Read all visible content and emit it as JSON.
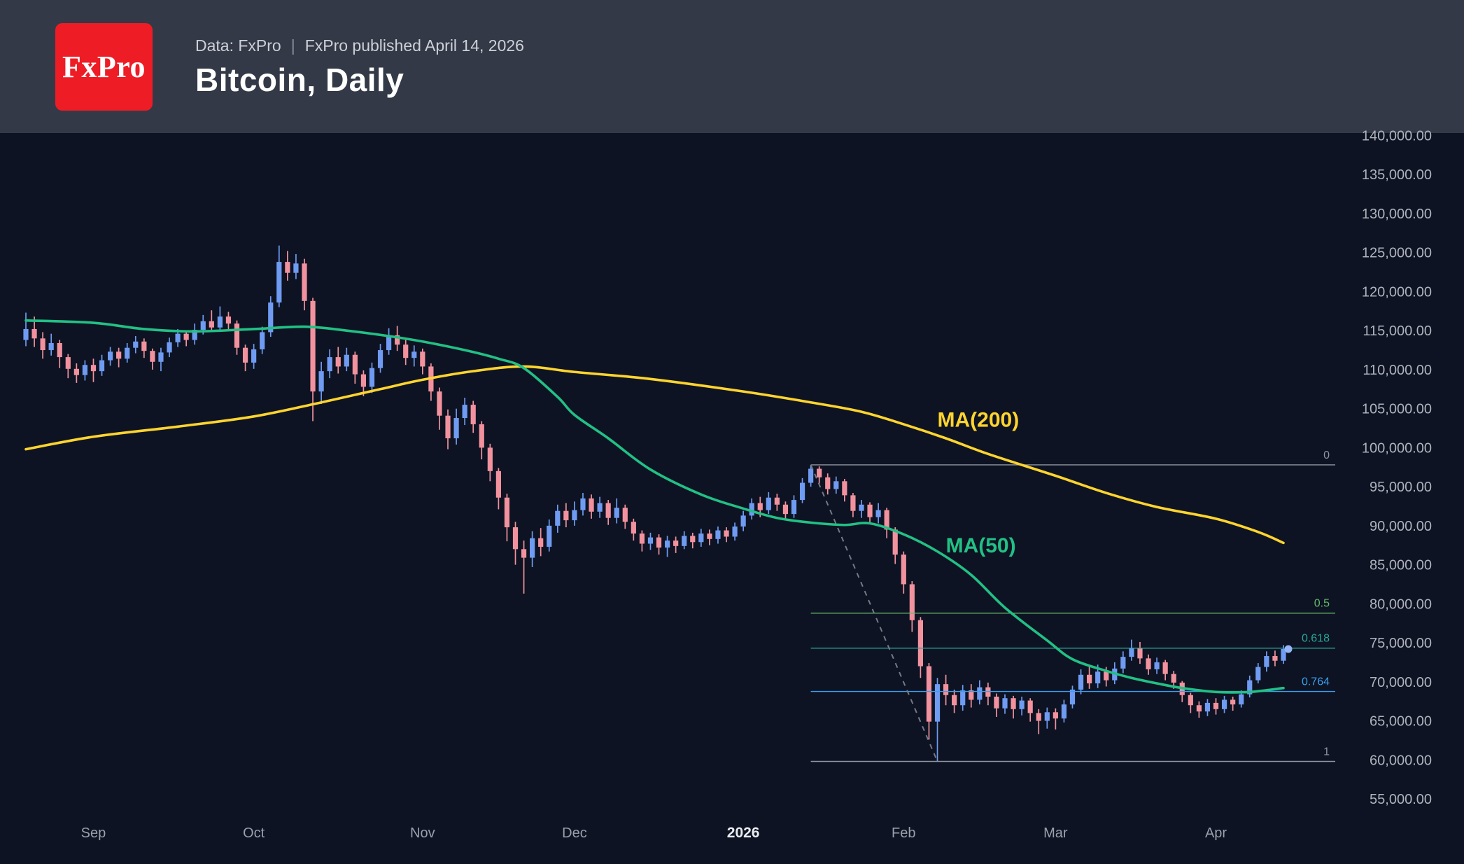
{
  "header": {
    "logo_text": "FxPro",
    "source_line": "Data: FxPro",
    "separator": "|",
    "published_line": "FxPro published April 14, 2026",
    "title": "Bitcoin, Daily"
  },
  "chart_data": {
    "type": "candlestick",
    "title": "Bitcoin, Daily",
    "symbol": "Bitcoin",
    "timeframe": "Daily",
    "grid": false,
    "colors": {
      "up": "#6f9bf2",
      "down": "#f2929e",
      "background": "#0d1322"
    },
    "y_axis": {
      "max": 140000,
      "min": 55000,
      "step": 5000,
      "ticks": [
        {
          "value": 140000,
          "label": "140,000.00"
        },
        {
          "value": 135000,
          "label": "135,000.00"
        },
        {
          "value": 130000,
          "label": "130,000.00"
        },
        {
          "value": 125000,
          "label": "125,000.00"
        },
        {
          "value": 120000,
          "label": "120,000.00"
        },
        {
          "value": 115000,
          "label": "115,000.00"
        },
        {
          "value": 110000,
          "label": "110,000.00"
        },
        {
          "value": 105000,
          "label": "105,000.00"
        },
        {
          "value": 100000,
          "label": "100,000.00"
        },
        {
          "value": 95000,
          "label": "95,000.00"
        },
        {
          "value": 90000,
          "label": "90,000.00"
        },
        {
          "value": 85000,
          "label": "85,000.00"
        },
        {
          "value": 80000,
          "label": "80,000.00"
        },
        {
          "value": 75000,
          "label": "75,000.00"
        },
        {
          "value": 70000,
          "label": "70,000.00"
        },
        {
          "value": 65000,
          "label": "65,000.00"
        },
        {
          "value": 60000,
          "label": "60,000.00"
        },
        {
          "value": 55000,
          "label": "55,000.00"
        }
      ]
    },
    "x_axis": {
      "labels": [
        {
          "text": "Sep",
          "index": 8,
          "bold": false
        },
        {
          "text": "Oct",
          "index": 27,
          "bold": false
        },
        {
          "text": "Nov",
          "index": 47,
          "bold": false
        },
        {
          "text": "Dec",
          "index": 65,
          "bold": false
        },
        {
          "text": "2026",
          "index": 85,
          "bold": true
        },
        {
          "text": "Feb",
          "index": 104,
          "bold": false
        },
        {
          "text": "Mar",
          "index": 122,
          "bold": false
        },
        {
          "text": "Apr",
          "index": 141,
          "bold": false
        }
      ]
    },
    "candles": [
      [
        113800,
        117300,
        113000,
        115200
      ],
      [
        115200,
        116800,
        112900,
        114000
      ],
      [
        114000,
        114800,
        111400,
        112500
      ],
      [
        112500,
        114600,
        111800,
        113400
      ],
      [
        113400,
        113800,
        110200,
        111600
      ],
      [
        111600,
        112000,
        108900,
        110100
      ],
      [
        110100,
        110800,
        108300,
        109300
      ],
      [
        109300,
        111200,
        108600,
        110600
      ],
      [
        110600,
        111400,
        108400,
        109800
      ],
      [
        109800,
        111900,
        109200,
        111200
      ],
      [
        111200,
        112900,
        110500,
        112300
      ],
      [
        112300,
        112800,
        110300,
        111400
      ],
      [
        111400,
        113400,
        110900,
        112800
      ],
      [
        112800,
        114300,
        112100,
        113600
      ],
      [
        113600,
        114000,
        111500,
        112400
      ],
      [
        112400,
        112700,
        110000,
        111000
      ],
      [
        111000,
        112800,
        109800,
        112200
      ],
      [
        112200,
        114100,
        111600,
        113500
      ],
      [
        113500,
        115200,
        112900,
        114600
      ],
      [
        114600,
        115000,
        113000,
        113800
      ],
      [
        113800,
        115900,
        113200,
        115100
      ],
      [
        115100,
        117000,
        114500,
        116200
      ],
      [
        116200,
        117600,
        114800,
        115400
      ],
      [
        115400,
        118100,
        114900,
        116800
      ],
      [
        116800,
        117400,
        115000,
        115900
      ],
      [
        115900,
        116300,
        111900,
        112800
      ],
      [
        112800,
        113200,
        109800,
        110900
      ],
      [
        110900,
        113300,
        110100,
        112600
      ],
      [
        112600,
        115500,
        112000,
        114800
      ],
      [
        114800,
        119400,
        114200,
        118600
      ],
      [
        118600,
        125900,
        118000,
        123800
      ],
      [
        123800,
        125200,
        121400,
        122400
      ],
      [
        122400,
        124800,
        121600,
        123600
      ],
      [
        123600,
        124200,
        117600,
        118800
      ],
      [
        118800,
        119200,
        103400,
        107200
      ],
      [
        107200,
        111000,
        105600,
        109800
      ],
      [
        109800,
        112600,
        108900,
        111600
      ],
      [
        111600,
        112900,
        109500,
        110400
      ],
      [
        110400,
        112800,
        109800,
        111900
      ],
      [
        111900,
        112300,
        108200,
        109400
      ],
      [
        109400,
        109900,
        106600,
        107800
      ],
      [
        107800,
        110900,
        107000,
        110200
      ],
      [
        110200,
        113300,
        109600,
        112500
      ],
      [
        112500,
        115300,
        111900,
        114400
      ],
      [
        114400,
        115600,
        112400,
        113200
      ],
      [
        113200,
        113800,
        110600,
        111500
      ],
      [
        111500,
        113100,
        110400,
        112300
      ],
      [
        112300,
        112700,
        109400,
        110400
      ],
      [
        110400,
        110800,
        106000,
        107200
      ],
      [
        107200,
        107700,
        102300,
        104100
      ],
      [
        104100,
        104900,
        99800,
        101200
      ],
      [
        101200,
        105000,
        100400,
        103800
      ],
      [
        103800,
        106400,
        102900,
        105500
      ],
      [
        105500,
        106000,
        101900,
        103000
      ],
      [
        103000,
        103400,
        98500,
        100000
      ],
      [
        100000,
        100500,
        95700,
        97000
      ],
      [
        97000,
        97400,
        92100,
        93600
      ],
      [
        93600,
        94100,
        88000,
        89800
      ],
      [
        89800,
        90500,
        85000,
        87000
      ],
      [
        87000,
        88100,
        81300,
        85900
      ],
      [
        85900,
        89300,
        84700,
        88400
      ],
      [
        88400,
        89700,
        86100,
        87300
      ],
      [
        87300,
        90800,
        86700,
        90000
      ],
      [
        90000,
        92700,
        89100,
        91900
      ],
      [
        91900,
        92900,
        89800,
        90700
      ],
      [
        90700,
        93100,
        90000,
        92000
      ],
      [
        92000,
        94200,
        91300,
        93500
      ],
      [
        93500,
        94000,
        90900,
        91800
      ],
      [
        91800,
        93700,
        91000,
        92900
      ],
      [
        92900,
        93300,
        90100,
        91000
      ],
      [
        91000,
        93500,
        90300,
        92300
      ],
      [
        92300,
        92700,
        89600,
        90500
      ],
      [
        90500,
        90900,
        88100,
        89000
      ],
      [
        89000,
        89400,
        86700,
        87700
      ],
      [
        87700,
        89100,
        86900,
        88500
      ],
      [
        88500,
        88900,
        86300,
        87200
      ],
      [
        87200,
        88700,
        86000,
        88100
      ],
      [
        88100,
        88600,
        86500,
        87400
      ],
      [
        87400,
        89300,
        87000,
        88700
      ],
      [
        88700,
        89100,
        87100,
        87900
      ],
      [
        87900,
        89600,
        87300,
        89000
      ],
      [
        89000,
        89500,
        87500,
        88300
      ],
      [
        88300,
        89900,
        87700,
        89400
      ],
      [
        89400,
        89800,
        87900,
        88600
      ],
      [
        88600,
        90400,
        88100,
        89900
      ],
      [
        89900,
        91900,
        89300,
        91300
      ],
      [
        91300,
        93500,
        90800,
        92900
      ],
      [
        92900,
        93700,
        91100,
        92000
      ],
      [
        92000,
        94300,
        91500,
        93600
      ],
      [
        93600,
        94100,
        91900,
        92700
      ],
      [
        92700,
        93100,
        90700,
        91500
      ],
      [
        91500,
        93900,
        91000,
        93300
      ],
      [
        93300,
        96100,
        92900,
        95500
      ],
      [
        95500,
        97800,
        95000,
        97300
      ],
      [
        97300,
        97600,
        95400,
        96200
      ],
      [
        96200,
        96700,
        94000,
        94700
      ],
      [
        94700,
        96300,
        94100,
        95700
      ],
      [
        95700,
        96000,
        93100,
        93900
      ],
      [
        93900,
        94200,
        91100,
        91900
      ],
      [
        91900,
        93300,
        91000,
        92700
      ],
      [
        92700,
        93000,
        90200,
        91100
      ],
      [
        91100,
        92900,
        90300,
        92000
      ],
      [
        92000,
        92300,
        88400,
        89500
      ],
      [
        89500,
        89800,
        85100,
        86300
      ],
      [
        86300,
        86700,
        81300,
        82500
      ],
      [
        82500,
        82900,
        76400,
        77900
      ],
      [
        77900,
        78300,
        70500,
        72000
      ],
      [
        72000,
        72400,
        62600,
        64900
      ],
      [
        64900,
        70500,
        59800,
        69700
      ],
      [
        69700,
        70900,
        67000,
        68300
      ],
      [
        68300,
        69000,
        66000,
        67000
      ],
      [
        67000,
        69600,
        66300,
        68900
      ],
      [
        68900,
        69700,
        66700,
        67700
      ],
      [
        67700,
        70200,
        67100,
        69300
      ],
      [
        69300,
        69900,
        67000,
        68100
      ],
      [
        68100,
        68500,
        65500,
        66600
      ],
      [
        66600,
        68400,
        65900,
        67900
      ],
      [
        67900,
        68200,
        65300,
        66500
      ],
      [
        66500,
        68100,
        65700,
        67600
      ],
      [
        67600,
        67900,
        64900,
        66000
      ],
      [
        66000,
        66500,
        63300,
        65000
      ],
      [
        65000,
        66700,
        64000,
        66100
      ],
      [
        66100,
        66600,
        63900,
        65300
      ],
      [
        65300,
        67700,
        64800,
        67100
      ],
      [
        67100,
        69500,
        66600,
        69000
      ],
      [
        69000,
        71600,
        68400,
        70900
      ],
      [
        70900,
        72000,
        69100,
        69800
      ],
      [
        69800,
        72200,
        69200,
        71300
      ],
      [
        71300,
        71900,
        69400,
        70200
      ],
      [
        70200,
        72500,
        69700,
        71700
      ],
      [
        71700,
        73900,
        71100,
        73200
      ],
      [
        73200,
        75400,
        72700,
        74300
      ],
      [
        74300,
        75100,
        72300,
        73000
      ],
      [
        73000,
        73500,
        70900,
        71600
      ],
      [
        71600,
        73100,
        71000,
        72500
      ],
      [
        72500,
        72800,
        70200,
        71000
      ],
      [
        71000,
        71400,
        69100,
        69900
      ],
      [
        69900,
        70100,
        67400,
        68300
      ],
      [
        68300,
        68600,
        66000,
        67000
      ],
      [
        67000,
        67500,
        65400,
        66200
      ],
      [
        66200,
        67800,
        65600,
        67300
      ],
      [
        67300,
        67900,
        65800,
        66500
      ],
      [
        66500,
        68200,
        66000,
        67700
      ],
      [
        67700,
        68100,
        66300,
        67100
      ],
      [
        67100,
        68900,
        66700,
        68400
      ],
      [
        68400,
        70800,
        68000,
        70200
      ],
      [
        70200,
        72400,
        69800,
        71900
      ],
      [
        71900,
        73900,
        71300,
        73300
      ],
      [
        73300,
        74000,
        72000,
        72700
      ],
      [
        72700,
        74700,
        72300,
        74200
      ]
    ],
    "ma200": {
      "label": "MA(200)",
      "color": "#ffd42e",
      "label_pos": {
        "index": 108,
        "price": 102700
      },
      "points": [
        [
          0,
          99800
        ],
        [
          8,
          101400
        ],
        [
          18,
          102700
        ],
        [
          27,
          104000
        ],
        [
          35,
          105800
        ],
        [
          42,
          107500
        ],
        [
          47,
          108700
        ],
        [
          53,
          109800
        ],
        [
          59,
          110400
        ],
        [
          65,
          109700
        ],
        [
          74,
          108800
        ],
        [
          85,
          107200
        ],
        [
          93,
          105800
        ],
        [
          99,
          104600
        ],
        [
          104,
          103000
        ],
        [
          109,
          101200
        ],
        [
          114,
          99200
        ],
        [
          122,
          96400
        ],
        [
          128,
          94200
        ],
        [
          134,
          92400
        ],
        [
          141,
          90900
        ],
        [
          146,
          89200
        ],
        [
          149,
          87800
        ]
      ]
    },
    "ma50": {
      "label": "MA(50)",
      "color": "#22c085",
      "label_pos": {
        "index": 109,
        "price": 86600
      },
      "points": [
        [
          0,
          116300
        ],
        [
          8,
          116000
        ],
        [
          14,
          115200
        ],
        [
          20,
          114900
        ],
        [
          27,
          115200
        ],
        [
          33,
          115500
        ],
        [
          38,
          115000
        ],
        [
          43,
          114300
        ],
        [
          47,
          113600
        ],
        [
          52,
          112500
        ],
        [
          56,
          111400
        ],
        [
          59,
          110200
        ],
        [
          63,
          106500
        ],
        [
          65,
          104200
        ],
        [
          69,
          101200
        ],
        [
          74,
          97200
        ],
        [
          80,
          94000
        ],
        [
          85,
          92200
        ],
        [
          89,
          91000
        ],
        [
          93,
          90400
        ],
        [
          97,
          90100
        ],
        [
          100,
          90300
        ],
        [
          104,
          88900
        ],
        [
          108,
          86700
        ],
        [
          112,
          83700
        ],
        [
          116,
          79500
        ],
        [
          121,
          75300
        ],
        [
          124,
          72900
        ],
        [
          128,
          71400
        ],
        [
          131,
          70500
        ],
        [
          134,
          69800
        ],
        [
          137,
          69200
        ],
        [
          141,
          68700
        ],
        [
          145,
          68700
        ],
        [
          149,
          69200
        ]
      ]
    },
    "fibonacci": {
      "start_index": 93,
      "levels": [
        {
          "label": "0",
          "value": 97800,
          "color": "#8f94a0"
        },
        {
          "label": "0.5",
          "value": 78800,
          "color": "#66bb6a"
        },
        {
          "label": "0.618",
          "value": 74316,
          "color": "#2aa69a"
        },
        {
          "label": "0.764",
          "value": 68768,
          "color": "#3a9ff0"
        },
        {
          "label": "1",
          "value": 59800,
          "color": "#8f94a0"
        }
      ]
    },
    "trendline": {
      "style": "dashed",
      "from_index": 93,
      "from_price": 97800,
      "to_index": 108,
      "to_price": 59800
    },
    "last_price_marker": {
      "index": 149,
      "price": 74200
    }
  }
}
